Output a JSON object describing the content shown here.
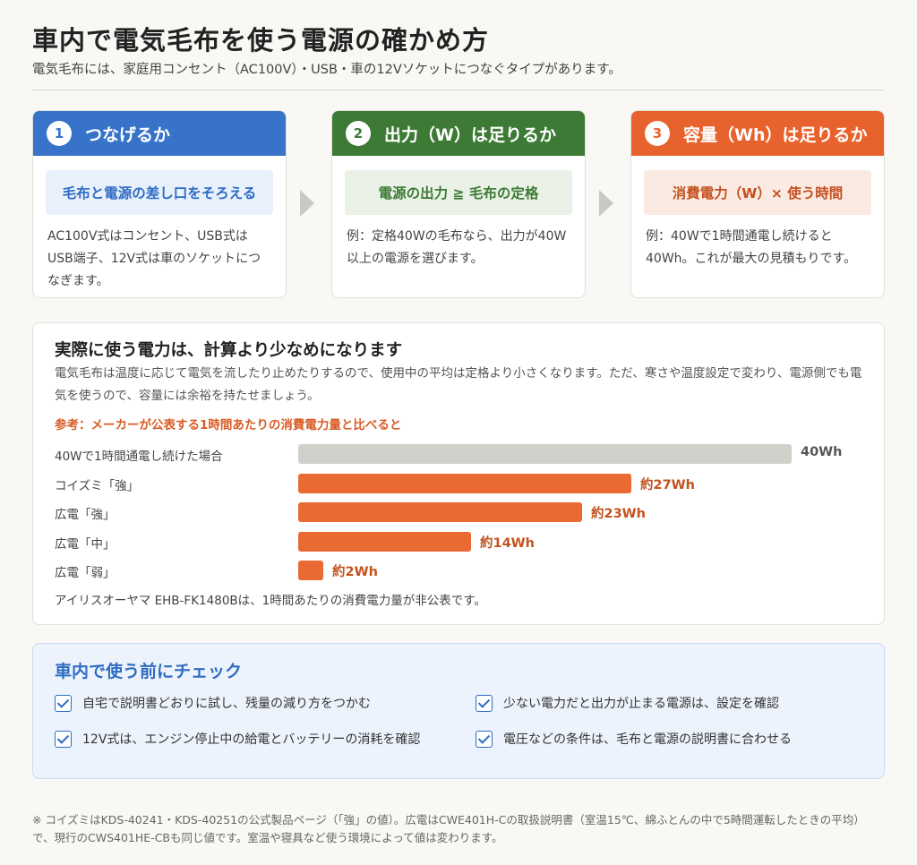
{
  "header": {
    "title": "車内で電気毛布を使う電源の確かめ方",
    "subtitle": "電気毛布には、家庭用コンセント（AC100V）・USB・車の12Vソケットにつなぐタイプがあります。"
  },
  "steps": [
    {
      "num": "1",
      "title": "つなげるか",
      "highlight": "毛布と電源の差し口をそろえる",
      "body": "AC100V式はコンセント、USB式はUSB端子、12V式は車のソケットにつなぎます。",
      "color": "#3673c9"
    },
    {
      "num": "2",
      "title": "出力（W）は足りるか",
      "highlight": "電源の出力 ≧ 毛布の定格",
      "body": "例：定格40Wの毛布なら、出力が40W以上の電源を選びます。",
      "color": "#3c7a35"
    },
    {
      "num": "3",
      "title": "容量（Wh）は足りるか",
      "highlight": "消費電力（W）× 使う時間",
      "body": "例：40Wで1時間通電し続けると40Wh。これが最大の見積もりです。",
      "color": "#e8622d"
    }
  ],
  "usage": {
    "title": "実際に使う電力は、計算より少なめになります",
    "description": "電気毛布は温度に応じて電気を流したり止めたりするので、使用中の平均は定格より小さくなります。ただ、寒さや温度設定で変わり、電源側でも電気を使うので、容量には余裕を持たせましょう。",
    "reference": "参考：メーカーが公表する1時間あたりの消費電力量と比べると",
    "note": "アイリスオーヤマ EHB-FK1480Bは、1時間あたりの消費電力量が非公表です。"
  },
  "chart_data": {
    "type": "bar",
    "orientation": "horizontal",
    "unit": "Wh",
    "categories": [
      "40Wで1時間通電し続けた場合",
      "コイズミ「強」",
      "広電「強」",
      "広電「中」",
      "広電「弱」"
    ],
    "values": [
      40,
      27,
      23,
      14,
      2
    ],
    "value_labels": [
      "40Wh",
      "約27Wh",
      "約23Wh",
      "約14Wh",
      "約2Wh"
    ],
    "colors": [
      "#d1d0cb",
      "#e96a33",
      "#e96a33",
      "#e96a33",
      "#e96a33"
    ],
    "xlim": [
      0,
      40
    ]
  },
  "checklist": {
    "title": "車内で使う前にチェック",
    "items": [
      "自宅で説明書どおりに試し、残量の減り方をつかむ",
      "少ない電力だと出力が止まる電源は、設定を確認",
      "12V式は、エンジン停止中の給電とバッテリーの消耗を確認",
      "電圧などの条件は、毛布と電源の説明書に合わせる"
    ]
  },
  "footnote": "※ コイズミはKDS-40241・KDS-40251の公式製品ページ（「強」の値）。広電はCWE401H-Cの取扱説明書（室温15℃、綿ふとんの中で5時間運転したときの平均）で、現行のCWS401HE-CBも同じ値です。室温や寝具など使う環境によって値は変わります。"
}
